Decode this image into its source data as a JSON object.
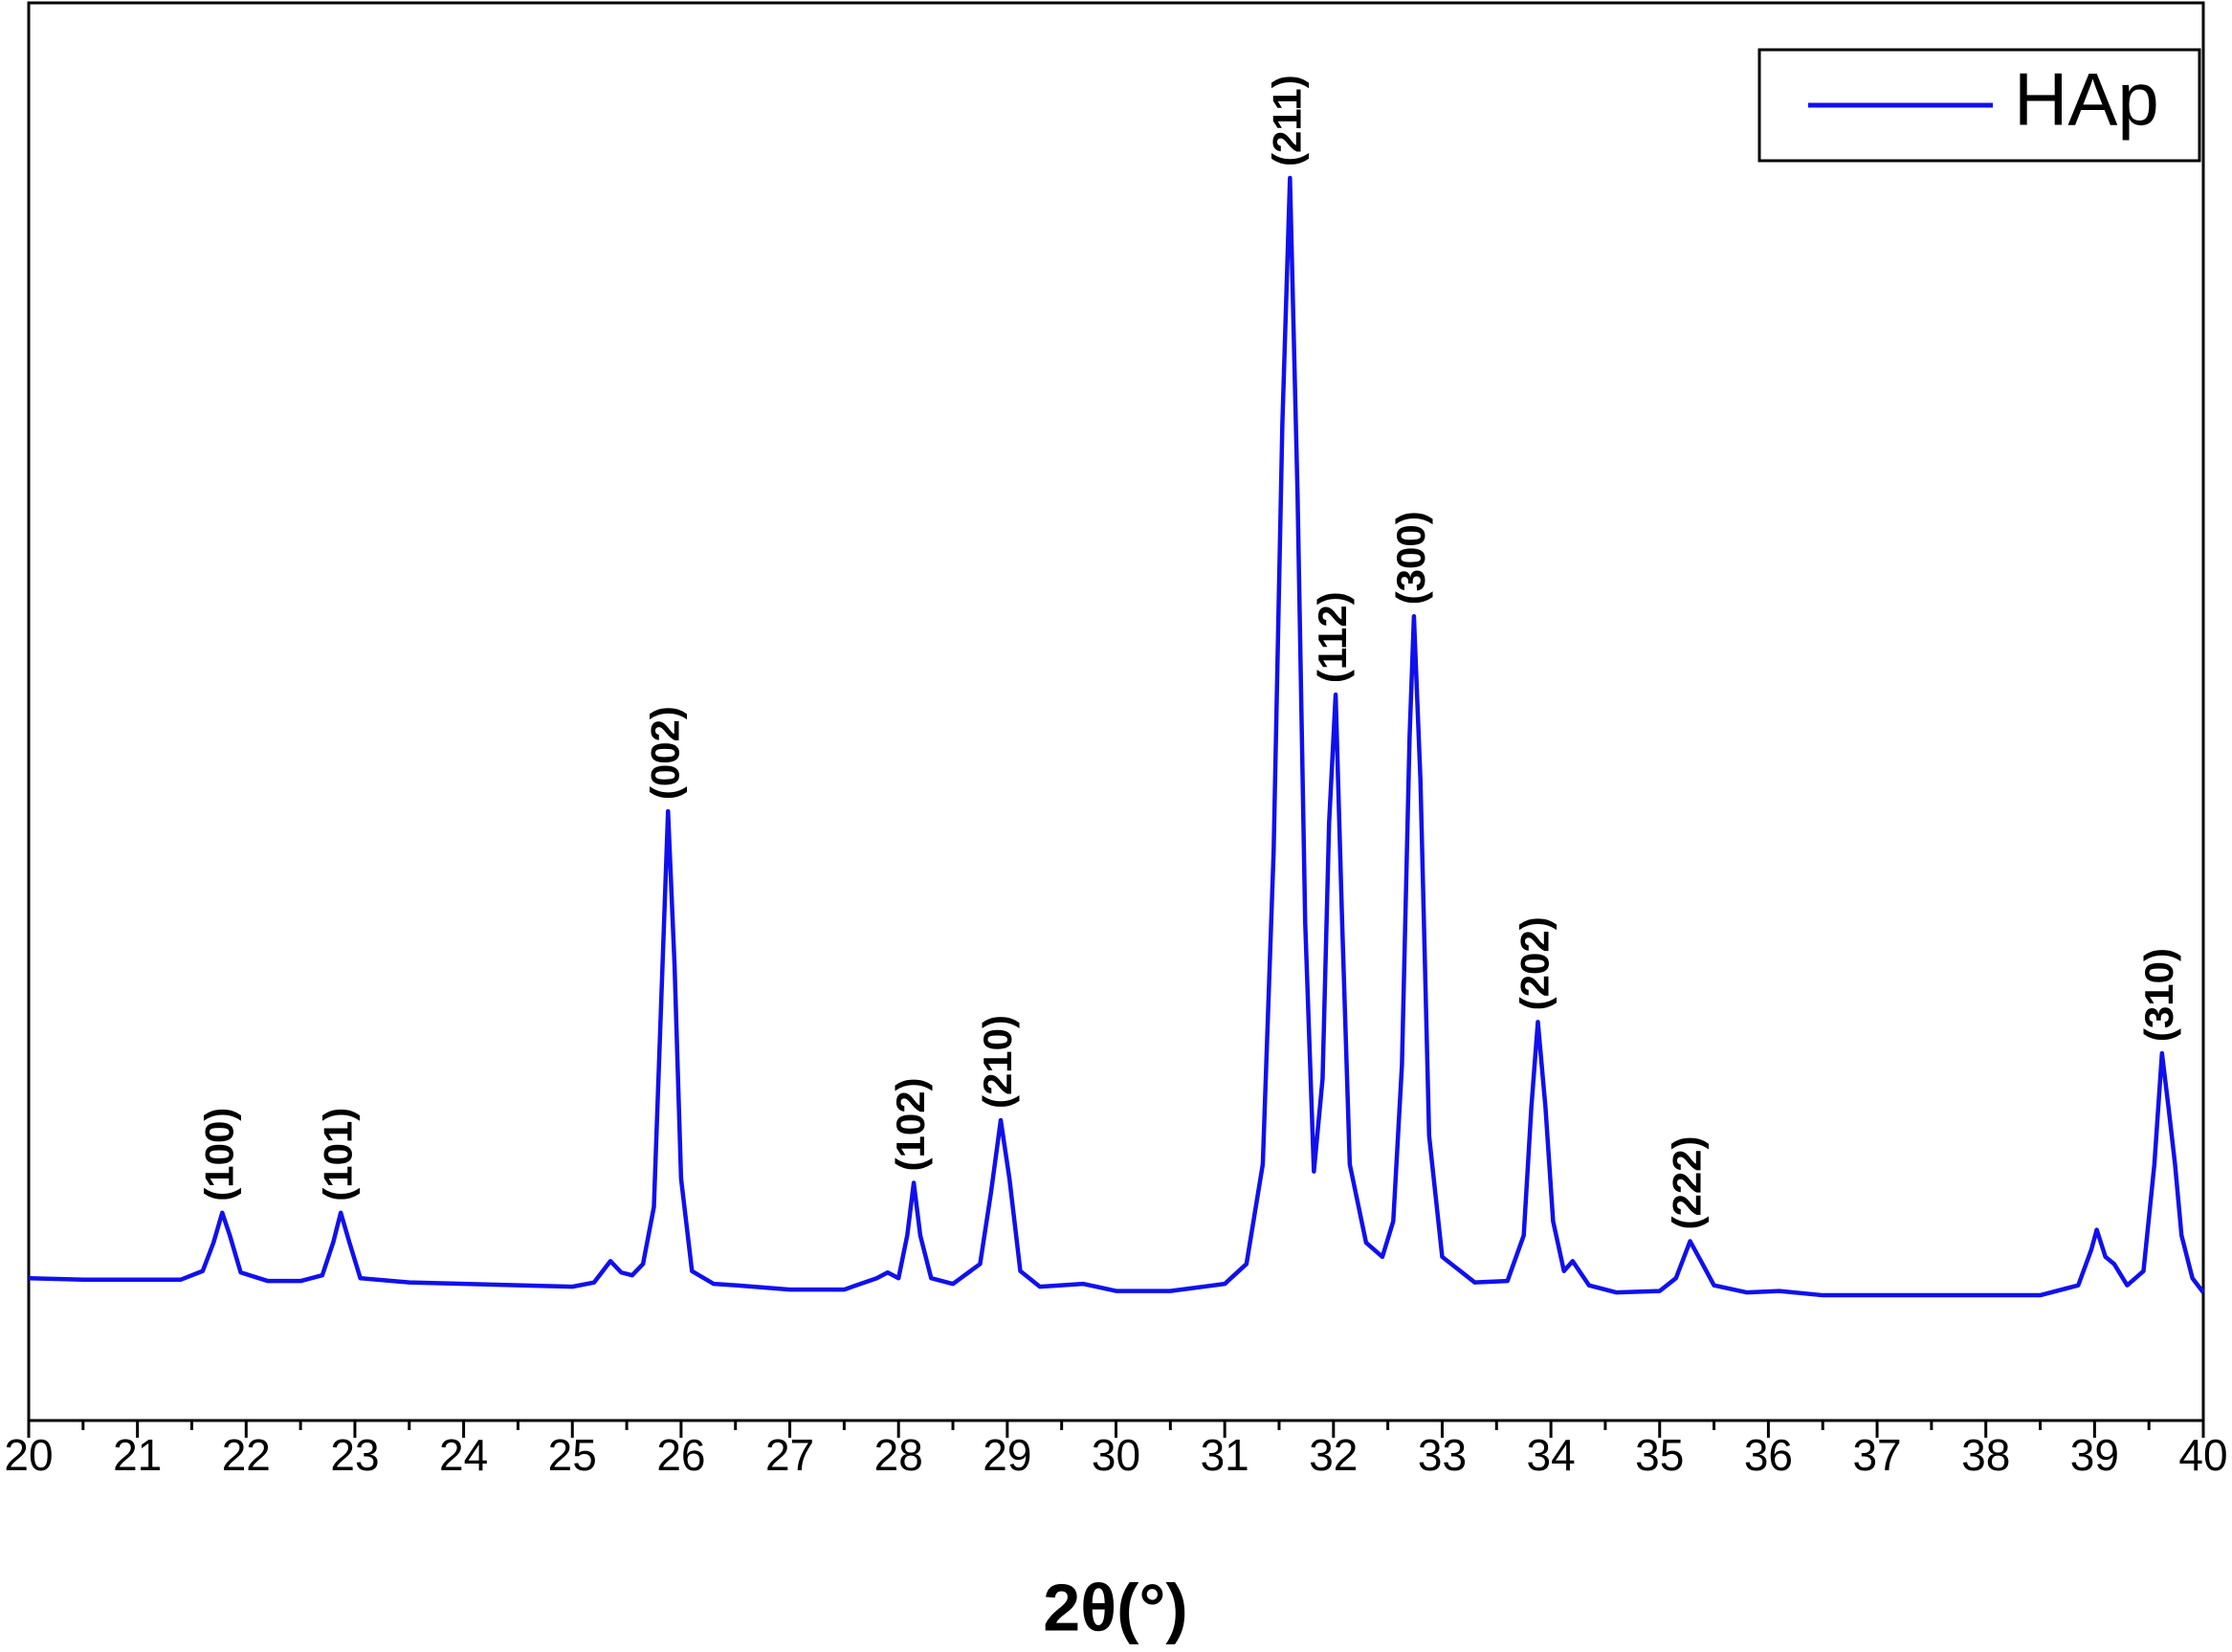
{
  "chart_data": {
    "type": "line",
    "x_label": "2θ(°)",
    "x": [
      20.0,
      20.5,
      21.0,
      21.4,
      21.6,
      21.7,
      21.78,
      21.85,
      21.95,
      22.2,
      22.5,
      22.7,
      22.8,
      22.87,
      22.95,
      23.05,
      23.5,
      24.0,
      24.5,
      25.0,
      25.2,
      25.35,
      25.45,
      25.55,
      25.65,
      25.75,
      25.82,
      25.88,
      25.94,
      26.0,
      26.1,
      26.3,
      26.5,
      27.0,
      27.5,
      27.8,
      27.9,
      28.0,
      28.08,
      28.14,
      28.2,
      28.3,
      28.5,
      28.75,
      28.85,
      28.94,
      29.02,
      29.12,
      29.3,
      29.7,
      30.0,
      30.5,
      31.0,
      31.2,
      31.35,
      31.45,
      31.53,
      31.6,
      31.67,
      31.74,
      31.82,
      31.9,
      31.96,
      32.02,
      32.08,
      32.15,
      32.3,
      32.45,
      32.55,
      32.63,
      32.7,
      32.74,
      32.8,
      32.88,
      33.0,
      33.3,
      33.6,
      33.75,
      33.82,
      33.88,
      33.95,
      34.02,
      34.12,
      34.2,
      34.35,
      34.6,
      35.0,
      35.15,
      35.28,
      35.38,
      35.5,
      35.8,
      36.1,
      36.5,
      37.0,
      37.5,
      38.0,
      38.5,
      38.85,
      38.97,
      39.02,
      39.1,
      39.18,
      39.3,
      39.45,
      39.55,
      39.62,
      39.68,
      39.74,
      39.8,
      39.9,
      40.0
    ],
    "series": [
      {
        "name": "HAp",
        "color": "#1010ee",
        "values": [
          100,
          99,
          99,
          99,
          105,
          125,
          146,
          130,
          104,
          98,
          98,
          102,
          125,
          146,
          125,
          100,
          97,
          96,
          95,
          94,
          97,
          112,
          104,
          102,
          110,
          150,
          300,
          428,
          320,
          170,
          105,
          96,
          95,
          92,
          92,
          100,
          104,
          100,
          130,
          167,
          130,
          100,
          96,
          110,
          160,
          211,
          170,
          105,
          94,
          96,
          91,
          91,
          96,
          110,
          180,
          400,
          700,
          873,
          650,
          350,
          175,
          240,
          420,
          510,
          350,
          180,
          125,
          115,
          140,
          250,
          480,
          565,
          450,
          200,
          115,
          97,
          98,
          130,
          220,
          280,
          220,
          140,
          105,
          112,
          95,
          90,
          91,
          100,
          126,
          112,
          95,
          90,
          91,
          88,
          88,
          88,
          88,
          88,
          95,
          120,
          134,
          115,
          110,
          95,
          105,
          180,
          258,
          220,
          180,
          130,
          100,
          90
        ]
      }
    ],
    "xlim": [
      20,
      40
    ],
    "xticks": [
      20,
      21,
      22,
      23,
      24,
      25,
      26,
      27,
      28,
      29,
      30,
      31,
      32,
      33,
      34,
      35,
      36,
      37,
      38,
      39,
      40
    ],
    "ylim": [
      0,
      996
    ],
    "legend": "top-right",
    "annotations": [
      {
        "label": "(100)",
        "x": 21.78,
        "y": 146
      },
      {
        "label": "(101)",
        "x": 22.87,
        "y": 146
      },
      {
        "label": "(002)",
        "x": 25.88,
        "y": 428
      },
      {
        "label": "(102)",
        "x": 28.14,
        "y": 167
      },
      {
        "label": "(210)",
        "x": 28.94,
        "y": 211
      },
      {
        "label": "(211)",
        "x": 31.6,
        "y": 873
      },
      {
        "label": "(112)",
        "x": 32.02,
        "y": 510
      },
      {
        "label": "(300)",
        "x": 32.74,
        "y": 565
      },
      {
        "label": "(202)",
        "x": 33.88,
        "y": 280
      },
      {
        "label": "(222)",
        "x": 35.28,
        "y": 126
      },
      {
        "label": "(310)",
        "x": 39.62,
        "y": 258
      }
    ]
  }
}
